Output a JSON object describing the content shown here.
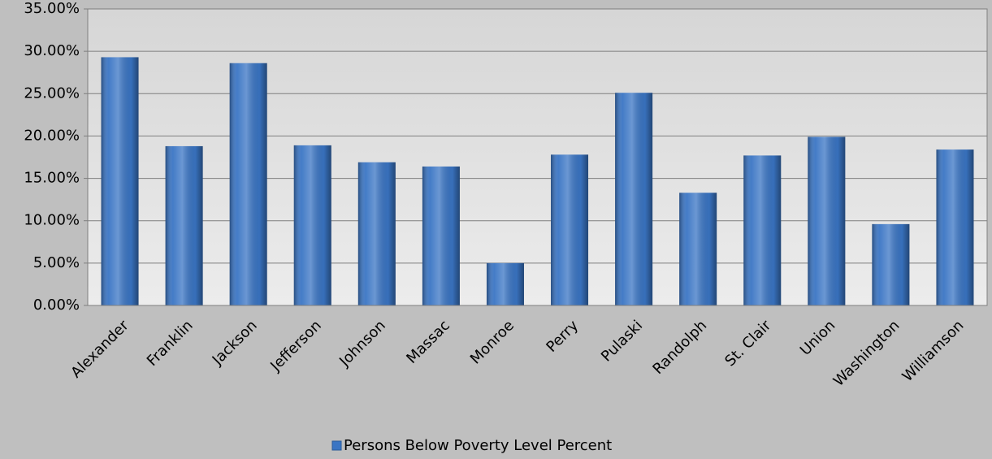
{
  "chart_data": {
    "type": "bar",
    "categories": [
      "Alexander",
      "Franklin",
      "Jackson",
      "Jefferson",
      "Johnson",
      "Massac",
      "Monroe",
      "Perry",
      "Pulaski",
      "Randolph",
      "St. Clair",
      "Union",
      "Washington",
      "Williamson"
    ],
    "series": [
      {
        "name": "Persons Below Poverty Level Percent",
        "color": "#3a75c4",
        "values": [
          29.3,
          18.8,
          28.6,
          18.9,
          16.9,
          16.4,
          5.0,
          17.8,
          25.1,
          13.3,
          17.7,
          19.9,
          9.6,
          18.4
        ]
      }
    ],
    "ylim": [
      0,
      35
    ],
    "yticks": [
      {
        "value": 0,
        "label": "0.00%"
      },
      {
        "value": 5,
        "label": "5.00%"
      },
      {
        "value": 10,
        "label": "10.00%"
      },
      {
        "value": 15,
        "label": "15.00%"
      },
      {
        "value": 20,
        "label": "20.00%"
      },
      {
        "value": 25,
        "label": "25.00%"
      },
      {
        "value": 30,
        "label": "30.00%"
      },
      {
        "value": 35,
        "label": "35.00%"
      }
    ],
    "grid": true,
    "legend": "bottom"
  }
}
